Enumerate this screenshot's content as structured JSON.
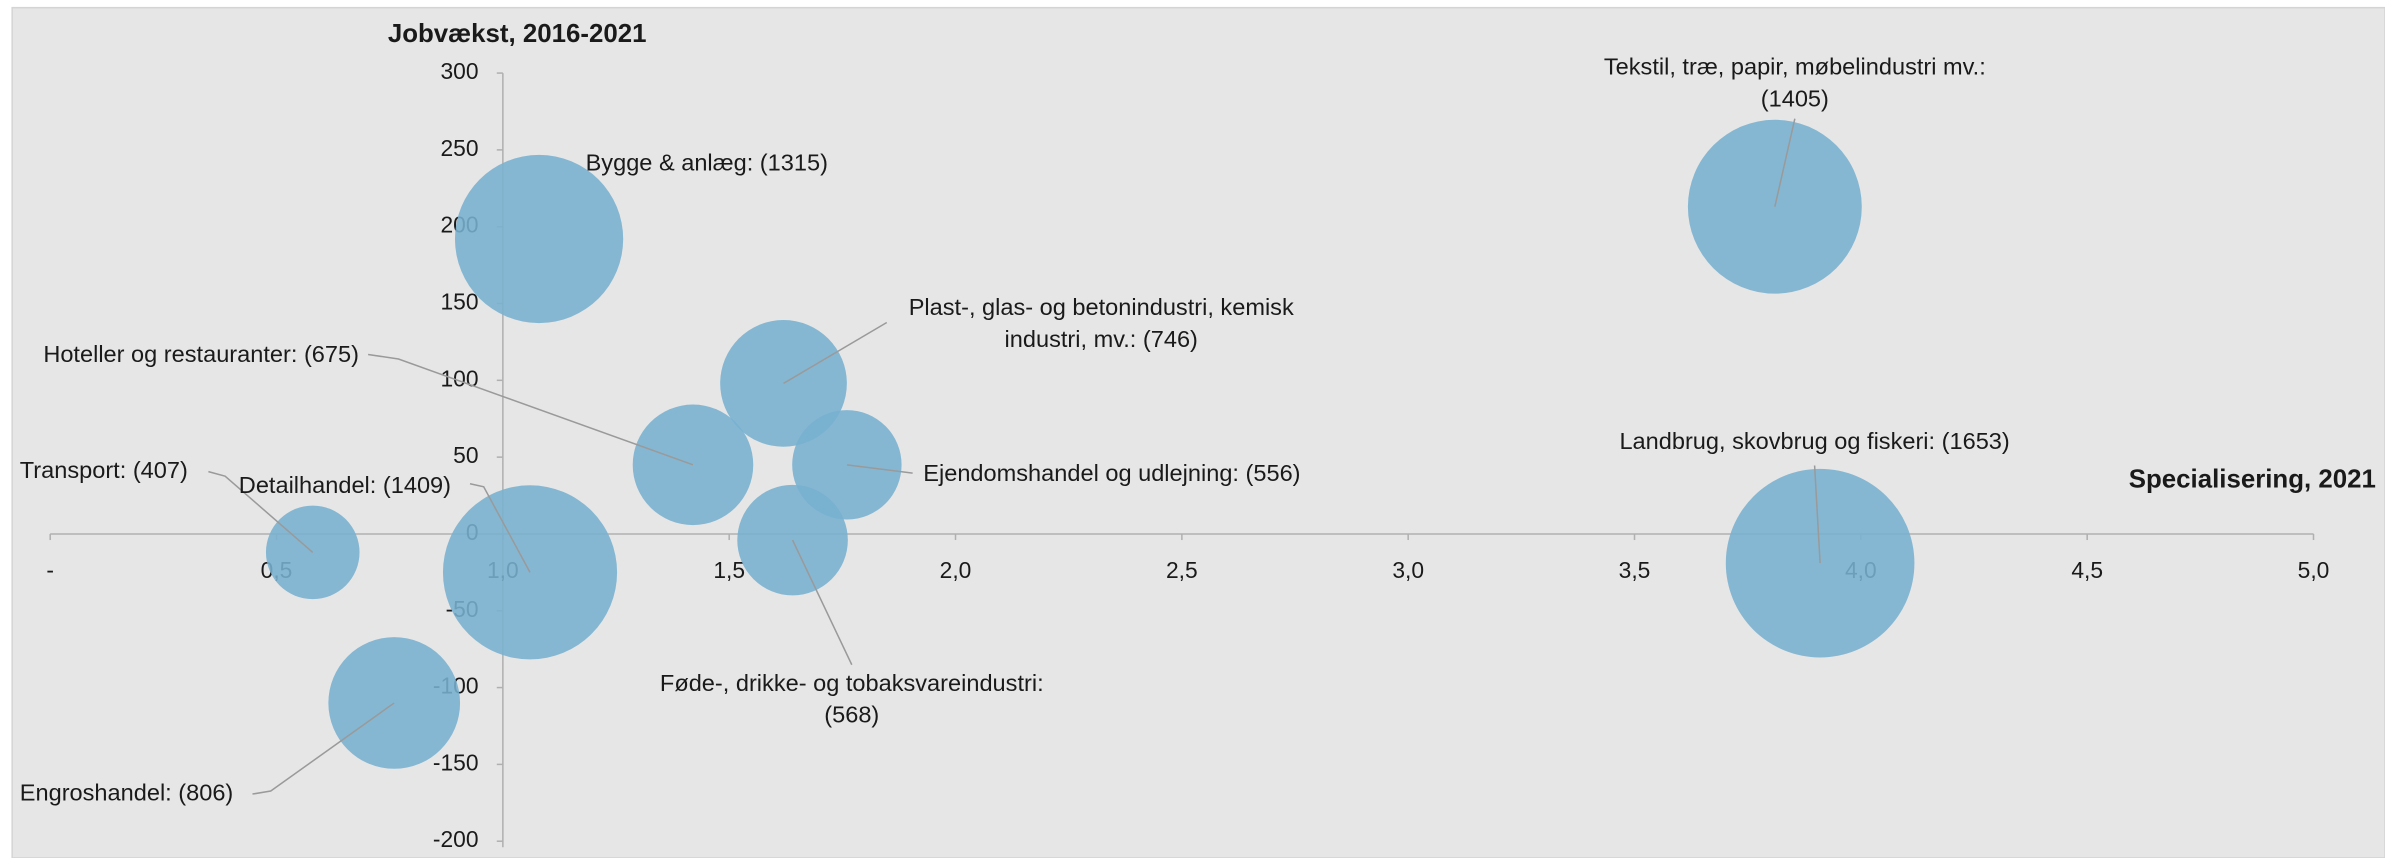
{
  "chart_data": {
    "type": "bubble",
    "y_title": "Jobvækst, 2016-2021",
    "x_title": "Specialisering, 2021",
    "color": "#78b1cf",
    "xlim": [
      0,
      5
    ],
    "ylim": [
      -200,
      300
    ],
    "y_axis_crossing": 1,
    "xticks": [
      {
        "value": 0,
        "label": "-"
      },
      {
        "value": 0.5,
        "label": "0,5"
      },
      {
        "value": 1,
        "label": "1,0"
      },
      {
        "value": 1.5,
        "label": "1,5"
      },
      {
        "value": 2,
        "label": "2,0"
      },
      {
        "value": 2.5,
        "label": "2,5"
      },
      {
        "value": 3,
        "label": "3,0"
      },
      {
        "value": 3.5,
        "label": "3,5"
      },
      {
        "value": 4,
        "label": "4,0"
      },
      {
        "value": 4.5,
        "label": "4,5"
      },
      {
        "value": 5,
        "label": "5,0"
      }
    ],
    "yticks": [
      300,
      250,
      200,
      150,
      100,
      50,
      0,
      -50,
      -100,
      -150,
      -200
    ],
    "points": [
      {
        "label": [
          "Bygge & anlæg: (1315)"
        ],
        "x": 1.08,
        "y": 192,
        "size": 1315
      },
      {
        "label": [
          "Tekstil, træ, papir, møbelindustri mv.:",
          "(1405)"
        ],
        "x": 3.81,
        "y": 213,
        "size": 1405
      },
      {
        "label": [
          "Plast-, glas- og betonindustri, kemisk",
          "industri, mv.: (746)"
        ],
        "x": 1.62,
        "y": 98,
        "size": 746
      },
      {
        "label": [
          "Hoteller og restauranter: (675)"
        ],
        "x": 1.42,
        "y": 45,
        "size": 675
      },
      {
        "label": [
          "Ejendomshandel og udlejning: (556)"
        ],
        "x": 1.76,
        "y": 45,
        "size": 556
      },
      {
        "label": [
          "Føde-, drikke- og tobaksvareindustri:",
          "(568)"
        ],
        "x": 1.64,
        "y": -4,
        "size": 568
      },
      {
        "label": [
          "Transport: (407)"
        ],
        "x": 0.58,
        "y": -12,
        "size": 407
      },
      {
        "label": [
          "Detailhandel: (1409)"
        ],
        "x": 1.06,
        "y": -25,
        "size": 1409
      },
      {
        "label": [
          "Engroshandel: (806)"
        ],
        "x": 0.76,
        "y": -110,
        "size": 806
      },
      {
        "label": [
          "Landbrug, skovbrug og fiskeri: (1653)"
        ],
        "x": 3.91,
        "y": -19,
        "size": 1653
      }
    ]
  }
}
